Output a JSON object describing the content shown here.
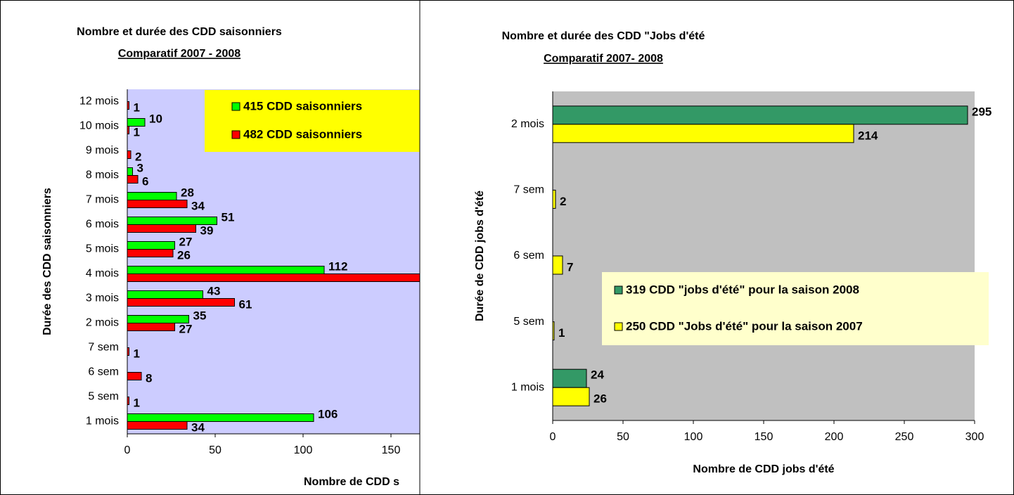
{
  "chart_data": [
    {
      "type": "barh",
      "title": "Nombre et durée des CDD saisonniers",
      "subtitle": "Comparatif 2007 -  2008",
      "x_label": "Nombre de CDD s",
      "y_label": "Durée des CDD saisonniers",
      "categories": [
        "12 mois",
        "10 mois",
        "9 mois",
        "8 mois",
        "7 mois",
        "6 mois",
        "5 mois",
        "4 mois",
        "3 mois",
        "2 mois",
        "7 sem",
        "6 sem",
        "5 sem",
        "1 mois"
      ],
      "series": [
        {
          "name": "415 CDD saisonniers",
          "color": "#00ff00",
          "label_color": "#339933",
          "values": [
            null,
            10,
            null,
            3,
            28,
            51,
            27,
            112,
            43,
            35,
            null,
            null,
            null,
            106
          ]
        },
        {
          "name": "482 CDD saisonniers",
          "color": "#ff0000",
          "label_color": "#ff0000",
          "values": [
            1,
            1,
            2,
            6,
            34,
            39,
            26,
            170,
            61,
            27,
            1,
            8,
            1,
            34
          ]
        }
      ],
      "xlim": [
        0,
        200
      ],
      "xticks": [
        0,
        50,
        100,
        150
      ],
      "background": "#ccccff",
      "legend_background": "#ffff00"
    },
    {
      "type": "barh",
      "title": "Nombre et durée des CDD \"Jobs d'été",
      "subtitle": "Comparatif 2007- 2008",
      "x_label": "Nombre de CDD jobs d'été",
      "y_label": "Durée de CDD jobs d'été",
      "categories": [
        "2 mois",
        "7 sem",
        "6 sem",
        "5 sem",
        "1 mois"
      ],
      "series": [
        {
          "name": "319 CDD \"jobs d'été\" pour la saison 2008",
          "color": "#339966",
          "label_color": "#2e8b3a",
          "values": [
            295,
            null,
            null,
            null,
            24
          ]
        },
        {
          "name": "250 CDD \"Jobs d'été\" pour la saison 2007",
          "color": "#ffff00",
          "label_color": "#ffff00",
          "values": [
            214,
            2,
            7,
            1,
            26
          ]
        }
      ],
      "xlim": [
        0,
        300
      ],
      "xticks": [
        0,
        50,
        100,
        150,
        200,
        250,
        300
      ],
      "background": "#c0c0c0",
      "legend_background": "#ffffcc"
    }
  ]
}
